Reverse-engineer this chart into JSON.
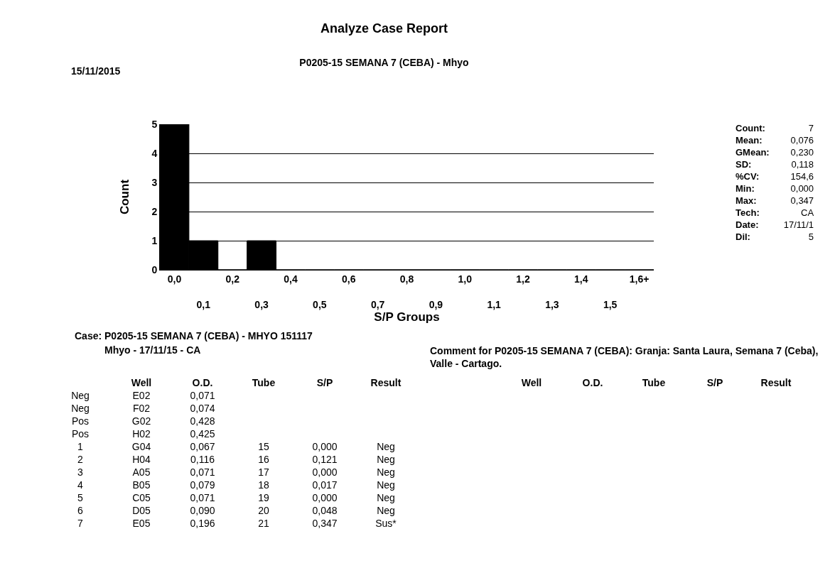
{
  "chart_data": {
    "type": "bar",
    "title": "Analyze Case Report",
    "subtitle": "P0205-15 SEMANA 7 (CEBA) - Mhyo",
    "xlabel": "S/P Groups",
    "ylabel": "Count",
    "categories": [
      "0,0",
      "0,1",
      "0,2",
      "0,3",
      "0,4",
      "0,5",
      "0,6",
      "0,7",
      "0,8",
      "0,9",
      "1,0",
      "1,1",
      "1,2",
      "1,3",
      "1,4",
      "1,5",
      "1,6+"
    ],
    "values": [
      5,
      1,
      0,
      1,
      0,
      0,
      0,
      0,
      0,
      0,
      0,
      0,
      0,
      0,
      0,
      0,
      0
    ],
    "color": "#000000",
    "ylim": [
      0,
      5
    ],
    "yticks": [
      0,
      1,
      2,
      3,
      4,
      5
    ],
    "grid": "y",
    "annotations": [
      "15/11/2015",
      "Count:\t7",
      "Mean:\t0,076",
      "GMean:\t0,230",
      "SD:\t0,118",
      "%CV:\t154,6",
      "Min:\t0,000",
      "Max:\t0,347",
      "Tech:\tCA",
      "Date:\t17/11/1",
      "Dil:\t5",
      "Case:  P0205-15 SEMANA 7 (CEBA)  -  MHYO 151117",
      "Mhyo - 17/11/15 - CA",
      "Comment for  P0205-15 SEMANA 7 (CEBA):  Granja: Santa Laura, Semana 7 (Ceba), Valle - Cartago.",
      "\tWell\tO.D.\tTube\tS/P\tResult",
      "Neg\tE02\t0,071\t\t\t",
      "Neg\tF02\t0,074\t\t\t",
      "Pos\tG02\t0,428\t\t\t",
      "Pos\tH02\t0,425\t\t\t",
      "1\tG04\t0,067\t15\t0,000\tNeg",
      "2\tH04\t0,116\t16\t0,121\tNeg",
      "3\tA05\t0,071\t17\t0,000\tNeg",
      "4\tB05\t0,079\t18\t0,017\tNeg",
      "5\tC05\t0,071\t19\t0,000\tNeg",
      "6\tD05\t0,090\t20\t0,048\tNeg",
      "7\tE05\t0,196\t21\t0,347\tSus*",
      "Well\tO.D.\tTube\tS/P\tResult"
    ]
  }
}
